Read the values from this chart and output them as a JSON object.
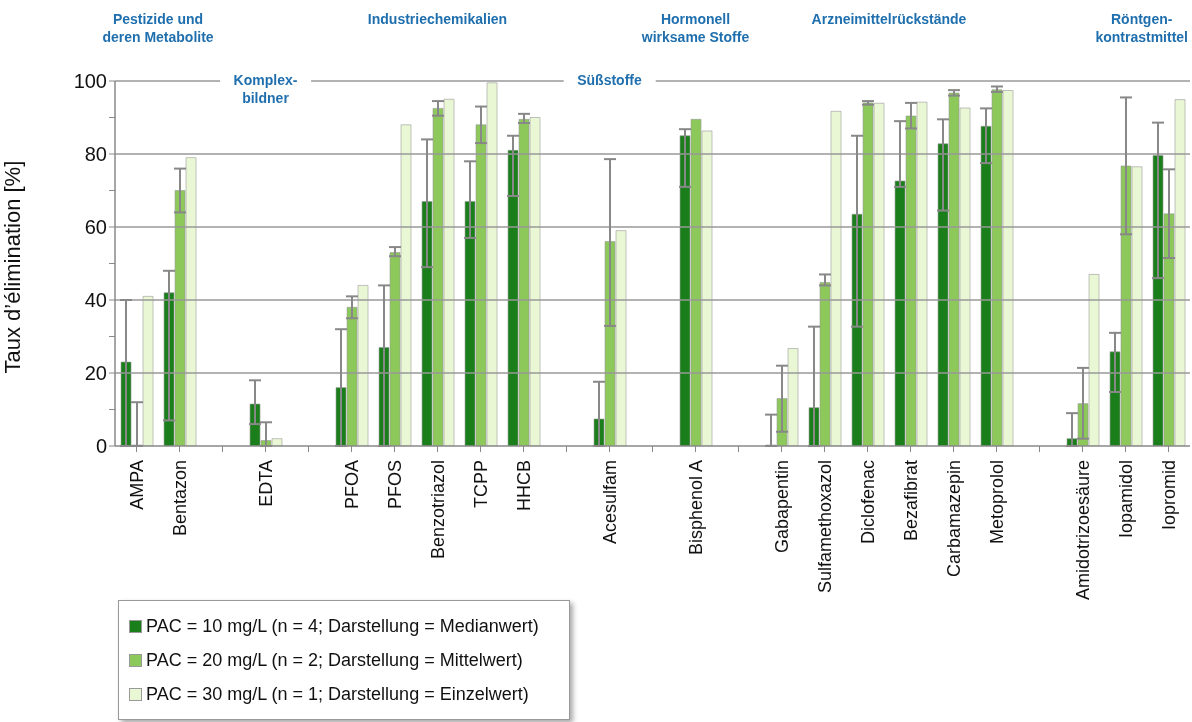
{
  "chart_data": {
    "type": "bar",
    "ylabel": "Taux d’élimination [%]",
    "categories": [
      "AMPA",
      "Bentazon",
      null,
      "EDTA",
      null,
      "PFOA",
      "PFOS",
      "Benzotriazol",
      "TCPP",
      "HHCB",
      null,
      "Acesulfam",
      null,
      "Bisphenol A",
      null,
      "Gabapentin",
      "Sulfamethoxazol",
      "Diclofenac",
      "Bezafibrat",
      "Carbamazepin",
      "Metoprolol",
      null,
      "Amidotrizoesäure",
      "Iopamidol",
      "Iopromid"
    ],
    "series": [
      {
        "name": "PAC = 10 mg/L (n = 4; Darstellung = Medianwert)",
        "color": "#1a7f1a",
        "values": [
          23,
          42,
          null,
          11.5,
          null,
          16,
          27,
          67,
          67,
          81,
          null,
          7.4,
          null,
          85,
          null,
          0,
          10.5,
          63.5,
          72.6,
          82.8,
          87.6,
          null,
          2,
          25.8,
          79.6
        ],
        "errors": [
          [
            0,
            40
          ],
          [
            7,
            48
          ],
          null,
          [
            6,
            18
          ],
          null,
          [
            0,
            32
          ],
          [
            0,
            44
          ],
          [
            49,
            84
          ],
          [
            57,
            78
          ],
          [
            68.5,
            85
          ],
          null,
          [
            0,
            17.6
          ],
          null,
          [
            71,
            86.8
          ],
          null,
          [
            0,
            8.6
          ],
          [
            0,
            32.7
          ],
          [
            32.7,
            85
          ],
          [
            71,
            89
          ],
          [
            64.5,
            89.5
          ],
          [
            77.5,
            92.5
          ],
          null,
          [
            0,
            9
          ],
          [
            14.8,
            31
          ],
          [
            46,
            88.6
          ]
        ]
      },
      {
        "name": "PAC = 20 mg/L (n = 2; Darstellung = Mittelwert)",
        "color": "#8cc85a",
        "values": [
          0,
          70,
          null,
          1.5,
          null,
          38,
          53,
          92.5,
          88,
          89.5,
          null,
          56,
          null,
          89.5,
          null,
          13,
          44.8,
          94,
          90.4,
          96.7,
          97.6,
          null,
          11.6,
          76.7,
          63.6
        ],
        "errors": [
          [
            0,
            12
          ],
          [
            64,
            76
          ],
          null,
          [
            0,
            6.5
          ],
          null,
          [
            35,
            41
          ],
          [
            52,
            54.5
          ],
          [
            90.5,
            94.5
          ],
          [
            83,
            93
          ],
          [
            88.5,
            91
          ],
          null,
          [
            32.9,
            78.6
          ],
          null,
          null,
          null,
          [
            3.9,
            22
          ],
          [
            44,
            47
          ],
          [
            93.5,
            94.5
          ],
          [
            87,
            94
          ],
          [
            96,
            97.5
          ],
          [
            97,
            98.5
          ],
          null,
          [
            2,
            21.4
          ],
          [
            58,
            95.5
          ],
          [
            51.5,
            75.8
          ]
        ]
      },
      {
        "name": "PAC = 30 mg/L (n = 1; Darstellung = Einzelwert)",
        "color": "#eaf7d5",
        "values": [
          41,
          79,
          null,
          2,
          null,
          44,
          88,
          95,
          99.5,
          90,
          null,
          59,
          null,
          86.3,
          null,
          26.7,
          91.7,
          93.9,
          94.2,
          92.6,
          97.4,
          null,
          47,
          76.5,
          94.9
        ]
      }
    ],
    "ylim": [
      0,
      100
    ],
    "yticks": [
      0,
      {
        "value": 10,
        "label": null
      },
      20,
      {
        "value": 30,
        "label": null
      },
      40,
      {
        "value": 50,
        "label": null
      },
      60,
      {
        "value": 70,
        "label": null
      },
      80,
      {
        "value": 90,
        "label": null
      },
      100
    ],
    "grid": "y",
    "legend": "bottom left",
    "annotations": [
      "Pestizide und\nderen Metabolite",
      "Industriechemikalien",
      "Hormonell\nwirksame Stoffe",
      "Arzneimittelrückstände",
      "Röntgen-\nkontrastmittel",
      "Komplex-\nbildner",
      "Süßstoffe"
    ]
  }
}
